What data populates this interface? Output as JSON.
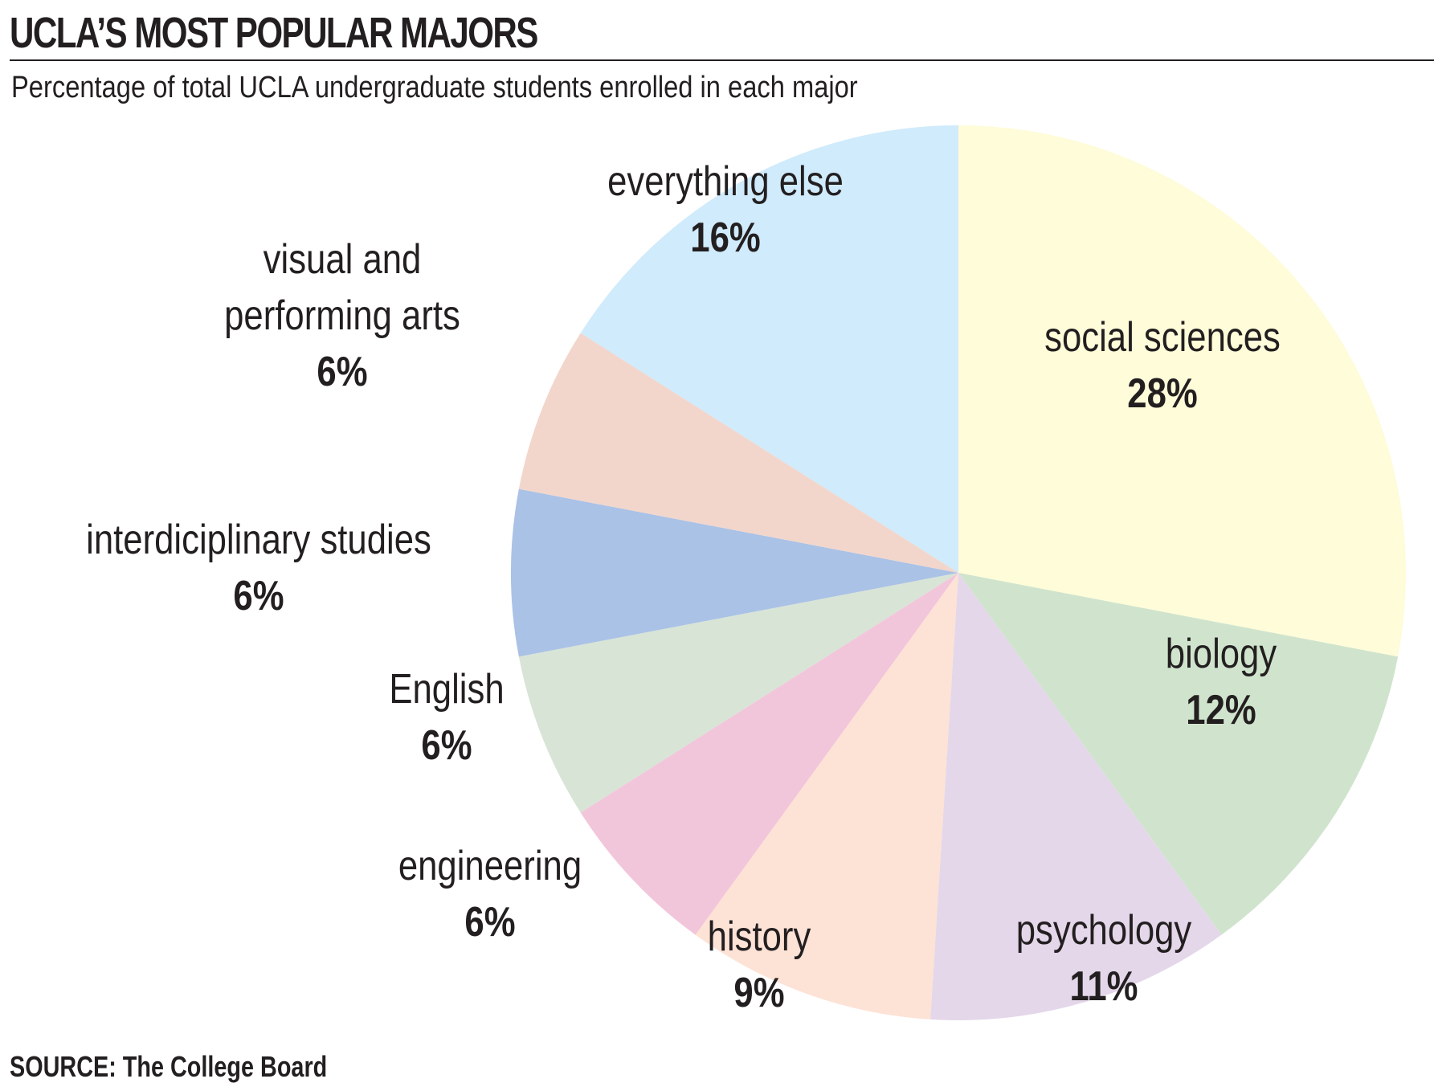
{
  "title": "UCLA’S MOST POPULAR MAJORS",
  "subtitle": "Percentage of total UCLA undergraduate students enrolled in each major",
  "source": "SOURCE: The College Board",
  "chart_data": {
    "type": "pie",
    "title": "UCLA’S MOST POPULAR MAJORS",
    "subtitle": "Percentage of total UCLA undergraduate students enrolled in each major",
    "slices": [
      {
        "label": [
          "social sciences"
        ],
        "value": 28,
        "display": "28%",
        "color": "#fefcd9"
      },
      {
        "label": [
          "biology"
        ],
        "value": 12,
        "display": "12%",
        "color": "#d0e4cd"
      },
      {
        "label": [
          "psychology"
        ],
        "value": 11,
        "display": "11%",
        "color": "#e4d7ea"
      },
      {
        "label": [
          "history"
        ],
        "value": 9,
        "display": "9%",
        "color": "#fde2d6"
      },
      {
        "label": [
          "engineering"
        ],
        "value": 6,
        "display": "6%",
        "color": "#f2c6da"
      },
      {
        "label": [
          "English"
        ],
        "value": 6,
        "display": "6%",
        "color": "#d8e4d6"
      },
      {
        "label": [
          "interdiciplinary studies"
        ],
        "value": 6,
        "display": "6%",
        "color": "#aac2e6"
      },
      {
        "label": [
          "visual and",
          "performing arts"
        ],
        "value": 6,
        "display": "6%",
        "color": "#f2d6cc"
      },
      {
        "label": [
          "everything else"
        ],
        "value": 16,
        "display": "16%",
        "color": "#d0ebfb"
      }
    ]
  }
}
